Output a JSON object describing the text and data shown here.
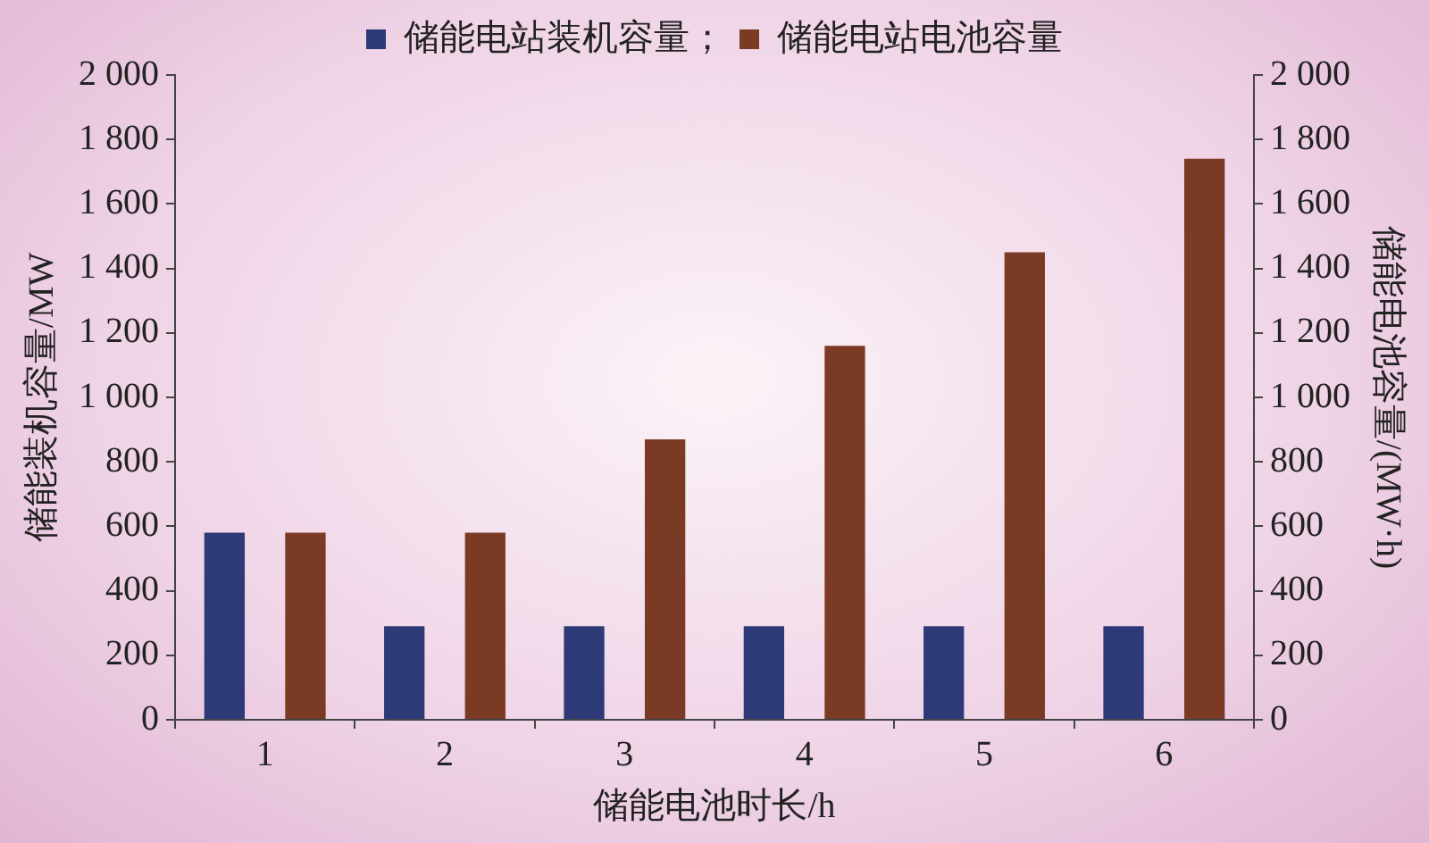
{
  "chart_data": {
    "type": "bar",
    "xlabel": "储能电池时长/h",
    "ylabel": "储能装机容量/MW",
    "y2label": "储能电池容量/(MW·h)",
    "categories": [
      "1",
      "2",
      "3",
      "4",
      "5",
      "6"
    ],
    "series": [
      {
        "name": "储能电站装机容量；",
        "color": "#2e3a78",
        "values": [
          580,
          290,
          290,
          290,
          290,
          290
        ]
      },
      {
        "name": "储能电站电池容量",
        "color": "#7b3a24",
        "values": [
          580,
          580,
          870,
          1160,
          1450,
          1740
        ],
        "axis": "y2"
      }
    ],
    "ylim": [
      0,
      2000
    ],
    "yticks": [
      0,
      200,
      400,
      600,
      800,
      {
        "value": 1000,
        "label": "1 000"
      },
      {
        "value": 1200,
        "label": "1 200"
      },
      {
        "value": 1400,
        "label": "1 400"
      },
      {
        "value": 1600,
        "label": "1 600"
      },
      {
        "value": 1800,
        "label": "1 800"
      },
      {
        "value": 2000,
        "label": "2 000"
      }
    ],
    "y2lim": [
      0,
      2000
    ],
    "y2ticks": [
      0,
      200,
      400,
      600,
      800,
      {
        "value": 1000,
        "label": "1 000"
      },
      {
        "value": 1200,
        "label": "1 200"
      },
      {
        "value": 1400,
        "label": "1 400"
      },
      {
        "value": 1600,
        "label": "1 600"
      },
      {
        "value": 1800,
        "label": "1 800"
      },
      {
        "value": 2000,
        "label": "2 000"
      }
    ],
    "grid": false,
    "legend": "top"
  }
}
